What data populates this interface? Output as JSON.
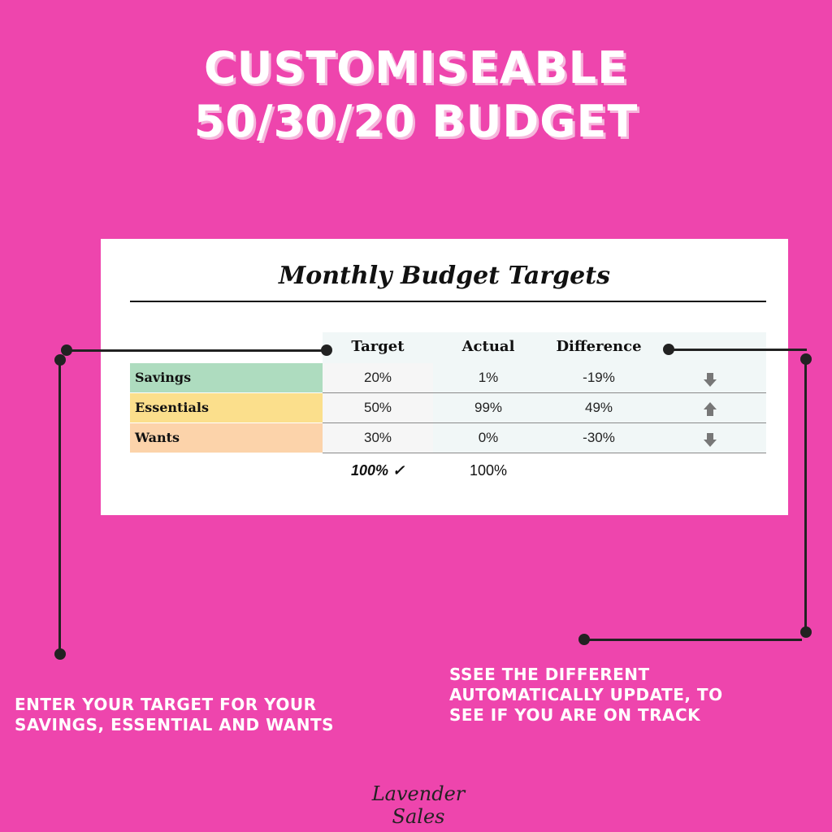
{
  "headline": {
    "line1": "CUSTOMISEABLE",
    "line2": "50/30/20 BUDGET"
  },
  "card": {
    "title": "Monthly Budget Targets",
    "columns": [
      "Target",
      "Actual",
      "Difference"
    ],
    "rows": [
      {
        "label": "Savings",
        "target": "20%",
        "actual": "1%",
        "difference": "-19%",
        "trend": "down",
        "color": "#aedcbf"
      },
      {
        "label": "Essentials",
        "target": "50%",
        "actual": "99%",
        "difference": "49%",
        "trend": "up",
        "color": "#fbdf8c"
      },
      {
        "label": "Wants",
        "target": "30%",
        "actual": "0%",
        "difference": "-30%",
        "trend": "down",
        "color": "#fcd3aa"
      }
    ],
    "totals": {
      "target": "100% ✓",
      "actual": "100%"
    }
  },
  "captions": {
    "left_line1": "ENTER YOUR TARGET FOR YOUR",
    "left_line2": "SAVINGS, ESSENTIAL AND WANTS",
    "right_line1": "SSEE THE DIFFERENT",
    "right_line2": "AUTOMATICALLY UPDATE, TO",
    "right_line3": "SEE IF YOU ARE ON TRACK"
  },
  "signature": "Lavender Sales",
  "colors": {
    "background": "#ee45ad",
    "headline_shadow": "#f6b7dc",
    "arrow": "#777777"
  }
}
